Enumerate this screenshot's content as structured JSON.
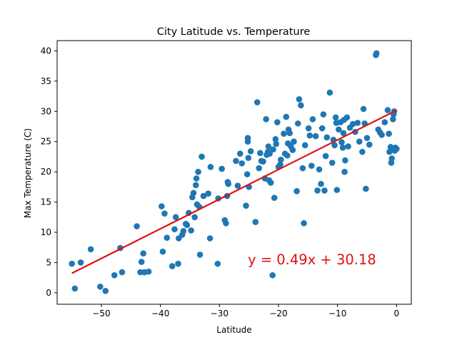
{
  "chart_data": {
    "type": "scatter",
    "title": "City Latitude vs. Temperature",
    "xlabel": "Latitude",
    "ylabel": "Max Temperature (C)",
    "xlim": [
      -57.5,
      2.5
    ],
    "ylim": [
      -1.9,
      41.7
    ],
    "xticks": [
      -50,
      -40,
      -30,
      -20,
      -10,
      0
    ],
    "xtick_labels": [
      "−50",
      "−40",
      "−30",
      "−20",
      "−10",
      "0"
    ],
    "yticks": [
      0,
      5,
      10,
      15,
      20,
      25,
      30,
      35,
      40
    ],
    "ytick_labels": [
      "0",
      "5",
      "10",
      "15",
      "20",
      "25",
      "30",
      "35",
      "40"
    ],
    "grid": false,
    "point_color": "#1f77b4",
    "line_color": "#e01010",
    "regression": {
      "slope": 0.49,
      "intercept": 30.18,
      "x_range": [
        -55,
        0
      ]
    },
    "annotation": {
      "text": "y = 0.49x + 30.18",
      "x": -25.2,
      "y": 5.5
    },
    "points": [
      [
        -55,
        4.8
      ],
      [
        -54.5,
        0.7
      ],
      [
        -53.5,
        5.0
      ],
      [
        -51.8,
        7.2
      ],
      [
        -50.2,
        1.0
      ],
      [
        -49.3,
        0.3
      ],
      [
        -47.8,
        2.9
      ],
      [
        -46.8,
        7.4
      ],
      [
        -46.5,
        3.4
      ],
      [
        -44,
        11.0
      ],
      [
        -43.4,
        3.4
      ],
      [
        -43.2,
        5.1
      ],
      [
        -42.9,
        6.5
      ],
      [
        -42.7,
        3.4
      ],
      [
        -42.0,
        3.5
      ],
      [
        -39.8,
        14.3
      ],
      [
        -39.6,
        6.8
      ],
      [
        -39.3,
        13.1
      ],
      [
        -38.9,
        9.1
      ],
      [
        -38.0,
        4.4
      ],
      [
        -37.6,
        10.5
      ],
      [
        -37.4,
        12.5
      ],
      [
        -37.0,
        4.8
      ],
      [
        -36.9,
        9.0
      ],
      [
        -36.3,
        9.6
      ],
      [
        -36.1,
        10.2
      ],
      [
        -35.7,
        11.4
      ],
      [
        -35.5,
        11.2
      ],
      [
        -35.2,
        13.2
      ],
      [
        -34.8,
        10.3
      ],
      [
        -34.6,
        15.8
      ],
      [
        -34.4,
        16.5
      ],
      [
        -34.2,
        12.5
      ],
      [
        -34.0,
        17.8
      ],
      [
        -33.9,
        18.9
      ],
      [
        -33.8,
        14.6
      ],
      [
        -33.6,
        20.0
      ],
      [
        -33.4,
        14.2
      ],
      [
        -33.3,
        6.3
      ],
      [
        -33.0,
        22.5
      ],
      [
        -32.7,
        16.0
      ],
      [
        -31.9,
        16.4
      ],
      [
        -31.6,
        9.0
      ],
      [
        -31.5,
        20.8
      ],
      [
        -30.3,
        4.8
      ],
      [
        -30.2,
        15.6
      ],
      [
        -29.6,
        20.5
      ],
      [
        -29.1,
        12.0
      ],
      [
        -28.9,
        11.5
      ],
      [
        -28.7,
        16.0
      ],
      [
        -28.6,
        18.3
      ],
      [
        -28.5,
        18.0
      ],
      [
        -27.2,
        21.8
      ],
      [
        -26.9,
        17.7
      ],
      [
        -26.5,
        23.0
      ],
      [
        -26.2,
        21.4
      ],
      [
        -25.5,
        14.4
      ],
      [
        -25.3,
        19.6
      ],
      [
        -25.2,
        25.0
      ],
      [
        -25.2,
        25.6
      ],
      [
        -25.1,
        22.3
      ],
      [
        -25.0,
        17.5
      ],
      [
        -24.7,
        23.4
      ],
      [
        -23.9,
        11.7
      ],
      [
        -23.6,
        31.5
      ],
      [
        -23.3,
        20.6
      ],
      [
        -23.1,
        23.1
      ],
      [
        -22.9,
        21.8
      ],
      [
        -22.6,
        21.7
      ],
      [
        -22.3,
        18.9
      ],
      [
        -22.1,
        28.7
      ],
      [
        -22.0,
        22.8
      ],
      [
        -21.8,
        23.3
      ],
      [
        -21.7,
        24.2
      ],
      [
        -21.6,
        18.6
      ],
      [
        -21.5,
        23.0
      ],
      [
        -21.3,
        18.2
      ],
      [
        -21.0,
        2.9
      ],
      [
        -20.9,
        23.7
      ],
      [
        -20.7,
        15.7
      ],
      [
        -20.5,
        25.4
      ],
      [
        -20.4,
        24.6
      ],
      [
        -20.2,
        28.2
      ],
      [
        -20.0,
        20.8
      ],
      [
        -19.7,
        21.2
      ],
      [
        -19.6,
        22.0
      ],
      [
        -19.1,
        26.3
      ],
      [
        -18.9,
        23.0
      ],
      [
        -18.7,
        29.1
      ],
      [
        -18.5,
        22.7
      ],
      [
        -18.4,
        24.7
      ],
      [
        -18.3,
        27.0
      ],
      [
        -18.1,
        26.4
      ],
      [
        -17.9,
        24.2
      ],
      [
        -17.6,
        23.6
      ],
      [
        -17.4,
        25.0
      ],
      [
        -16.9,
        16.8
      ],
      [
        -16.7,
        28.0
      ],
      [
        -16.5,
        32.0
      ],
      [
        -16.2,
        31.0
      ],
      [
        -15.9,
        20.6
      ],
      [
        -15.7,
        11.5
      ],
      [
        -15.5,
        24.4
      ],
      [
        -14.9,
        27.2
      ],
      [
        -14.7,
        26.0
      ],
      [
        -14.4,
        21.0
      ],
      [
        -14.2,
        28.7
      ],
      [
        -13.7,
        25.9
      ],
      [
        -13.4,
        16.9
      ],
      [
        -13.1,
        20.4
      ],
      [
        -12.8,
        18.0
      ],
      [
        -12.6,
        27.2
      ],
      [
        -12.4,
        29.5
      ],
      [
        -12.2,
        16.9
      ],
      [
        -12.0,
        22.6
      ],
      [
        -11.8,
        25.7
      ],
      [
        -11.3,
        33.1
      ],
      [
        -10.9,
        21.5
      ],
      [
        -10.7,
        25.3
      ],
      [
        -10.5,
        24.4
      ],
      [
        -10.3,
        29.0
      ],
      [
        -10.2,
        28.1
      ],
      [
        -10.1,
        17.0
      ],
      [
        -9.8,
        27.0
      ],
      [
        -9.5,
        28.2
      ],
      [
        -9.3,
        24.9
      ],
      [
        -9.1,
        24.0
      ],
      [
        -9.0,
        26.4
      ],
      [
        -8.9,
        28.6
      ],
      [
        -8.8,
        20.0
      ],
      [
        -8.7,
        21.9
      ],
      [
        -8.4,
        29.0
      ],
      [
        -8.2,
        24.2
      ],
      [
        -7.9,
        27.3
      ],
      [
        -7.4,
        27.9
      ],
      [
        -7.0,
        26.6
      ],
      [
        -6.6,
        28.1
      ],
      [
        -6.3,
        25.0
      ],
      [
        -5.8,
        23.3
      ],
      [
        -5.6,
        30.4
      ],
      [
        -5.4,
        28.0
      ],
      [
        -5.2,
        17.2
      ],
      [
        -5.0,
        25.6
      ],
      [
        -4.6,
        24.5
      ],
      [
        -3.5,
        39.3
      ],
      [
        -3.4,
        39.6
      ],
      [
        -3.1,
        27.0
      ],
      [
        -2.8,
        26.5
      ],
      [
        -2.5,
        26.1
      ],
      [
        -2.0,
        28.2
      ],
      [
        -1.5,
        30.2
      ],
      [
        -1.3,
        26.3
      ],
      [
        -1.2,
        23.3
      ],
      [
        -1.0,
        24.1
      ],
      [
        -0.9,
        21.5
      ],
      [
        -0.8,
        22.2
      ],
      [
        -0.6,
        28.7
      ],
      [
        -0.5,
        29.5
      ],
      [
        -0.4,
        30.0
      ],
      [
        -0.3,
        23.5
      ],
      [
        -0.2,
        24.0
      ],
      [
        0.0,
        23.8
      ]
    ]
  }
}
